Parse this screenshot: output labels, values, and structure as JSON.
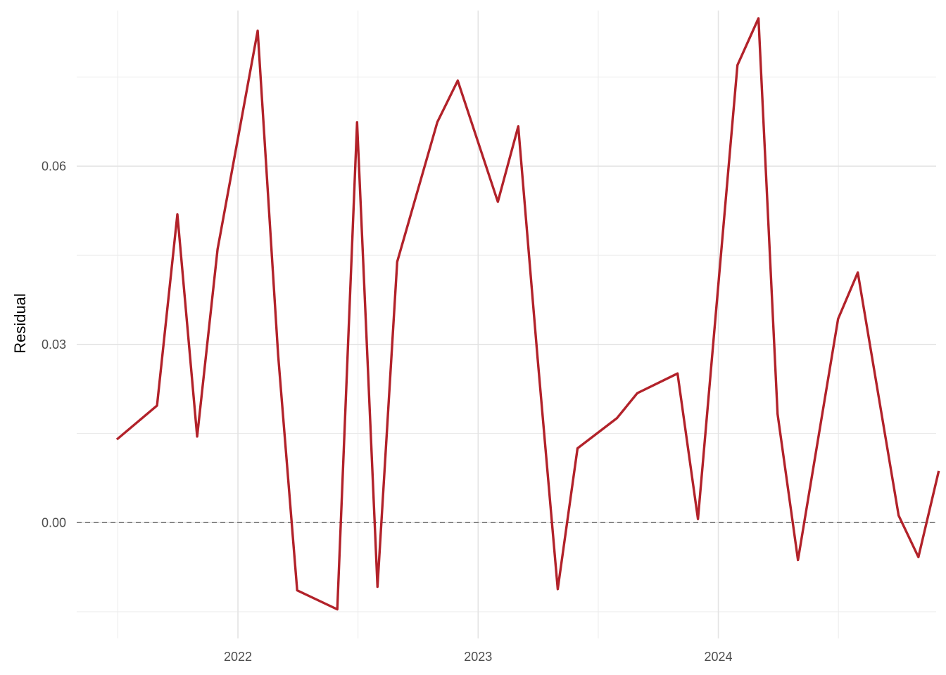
{
  "chart_data": {
    "type": "line",
    "title": "",
    "xlabel": "",
    "ylabel": "Residual",
    "x_ticks": [
      "2022",
      "2023",
      "2024"
    ],
    "y_ticks": [
      "0.00",
      "0.03",
      "0.06"
    ],
    "xlim": [
      "2021-05-01",
      "2024-11-27"
    ],
    "ylim": [
      -0.0195,
      0.0862
    ],
    "grid": true,
    "reference_line": {
      "y": 0,
      "style": "dashed"
    },
    "series": [
      {
        "color": "#b2222a",
        "points": [
          {
            "x": "2021-07-01",
            "y": 0.014
          },
          {
            "x": "2021-08-31",
            "y": 0.0197
          },
          {
            "x": "2021-10-01",
            "y": 0.0519
          },
          {
            "x": "2021-10-31",
            "y": 0.0145
          },
          {
            "x": "2021-12-01",
            "y": 0.046
          },
          {
            "x": "2022-01-31",
            "y": 0.0828
          },
          {
            "x": "2022-03-03",
            "y": 0.0283
          },
          {
            "x": "2022-04-01",
            "y": -0.0114
          },
          {
            "x": "2022-06-01",
            "y": -0.0146
          },
          {
            "x": "2022-07-01",
            "y": 0.0674
          },
          {
            "x": "2022-08-01",
            "y": -0.0108
          },
          {
            "x": "2022-08-31",
            "y": 0.0439
          },
          {
            "x": "2022-10-31",
            "y": 0.0674
          },
          {
            "x": "2022-12-01",
            "y": 0.0744
          },
          {
            "x": "2023-01-31",
            "y": 0.054
          },
          {
            "x": "2023-03-03",
            "y": 0.0667
          },
          {
            "x": "2023-04-01",
            "y": 0.0282
          },
          {
            "x": "2023-05-02",
            "y": -0.0112
          },
          {
            "x": "2023-06-01",
            "y": 0.0125
          },
          {
            "x": "2023-07-31",
            "y": 0.0176
          },
          {
            "x": "2023-08-31",
            "y": 0.0218
          },
          {
            "x": "2023-10-31",
            "y": 0.0251
          },
          {
            "x": "2023-12-01",
            "y": 0.0006
          },
          {
            "x": "2024-01-30",
            "y": 0.077
          },
          {
            "x": "2024-03-02",
            "y": 0.0849
          },
          {
            "x": "2024-03-31",
            "y": 0.0183
          },
          {
            "x": "2024-05-01",
            "y": -0.0063
          },
          {
            "x": "2024-07-01",
            "y": 0.0343
          },
          {
            "x": "2024-07-31",
            "y": 0.0421
          },
          {
            "x": "2024-10-01",
            "y": 0.0012
          },
          {
            "x": "2024-10-31",
            "y": -0.0058
          },
          {
            "x": "2024-12-01",
            "y": 0.0087
          }
        ]
      }
    ]
  }
}
